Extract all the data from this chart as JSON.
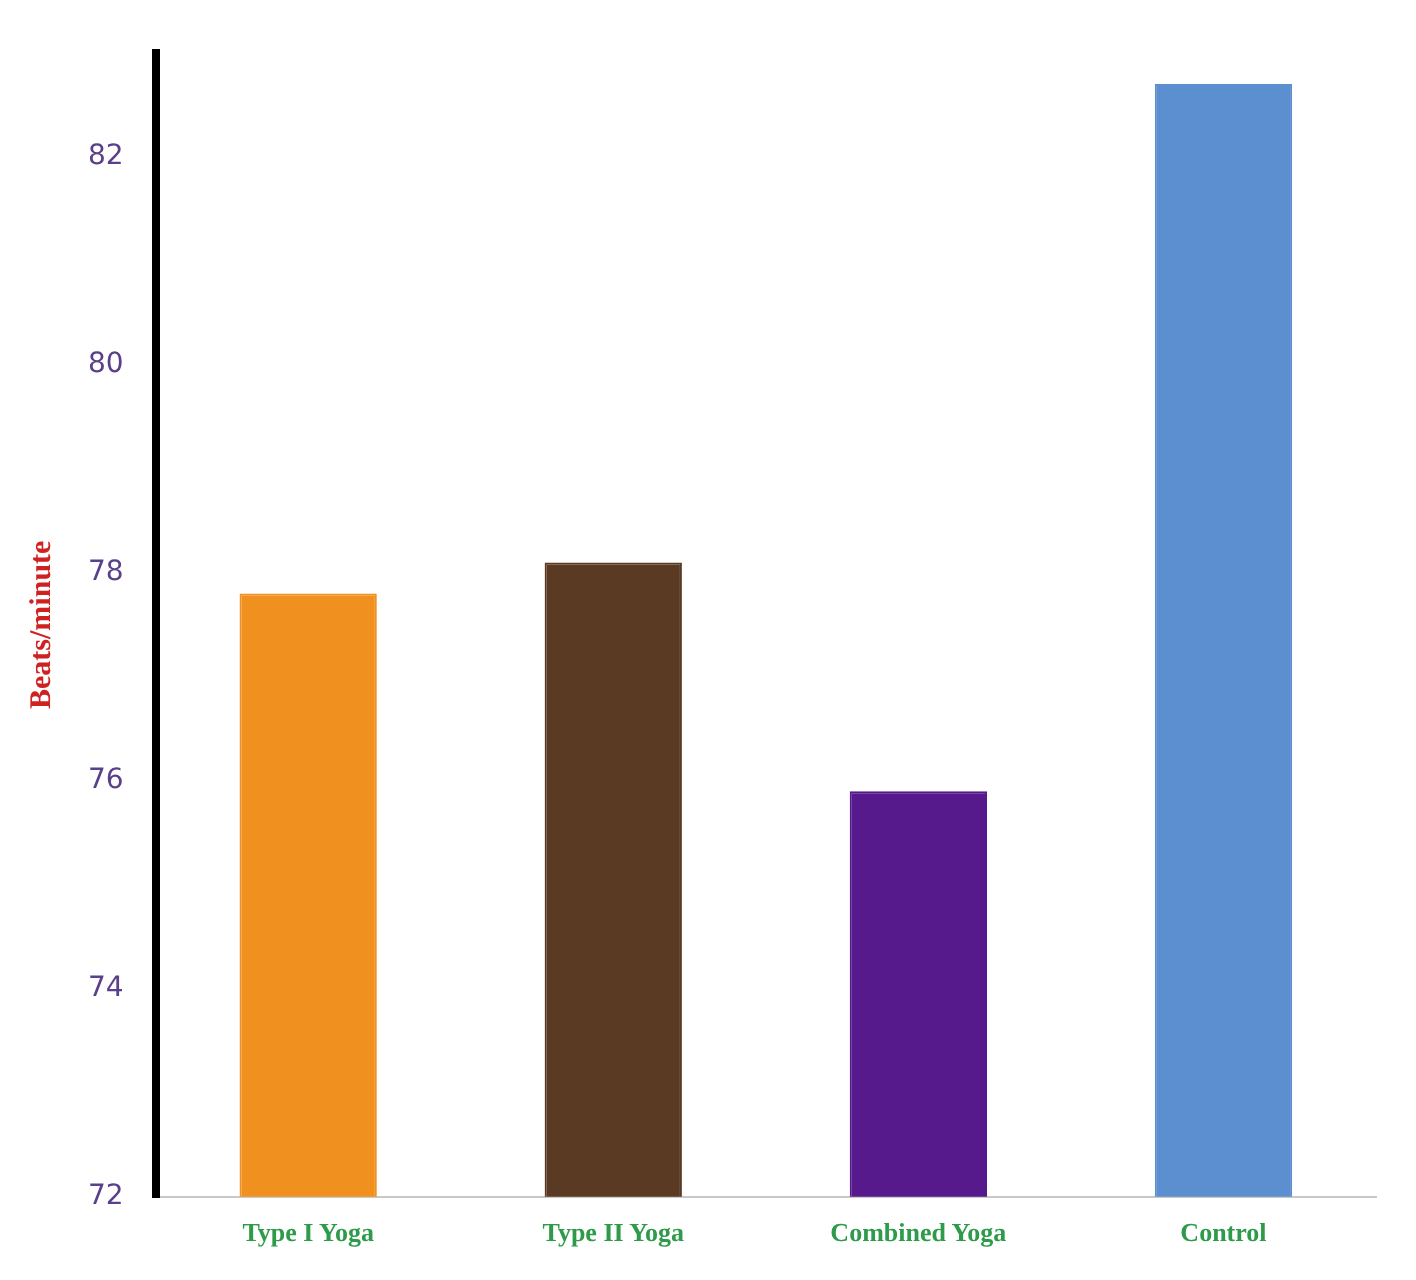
{
  "chart_data": {
    "type": "bar",
    "ylabel": "Beats/minute",
    "categories": [
      "Type I Yoga",
      "Type II Yoga",
      "Combined Yoga",
      "Control"
    ],
    "values": [
      77.8,
      78.1,
      75.9,
      82.7
    ],
    "colors": [
      "#f0901e",
      "#5a3a22",
      "#561a8c",
      "#5b8fd0"
    ],
    "ylim": [
      72,
      83
    ],
    "yticks": [
      72,
      74,
      76,
      78,
      80,
      82
    ],
    "grid": false,
    "legend": false
  }
}
